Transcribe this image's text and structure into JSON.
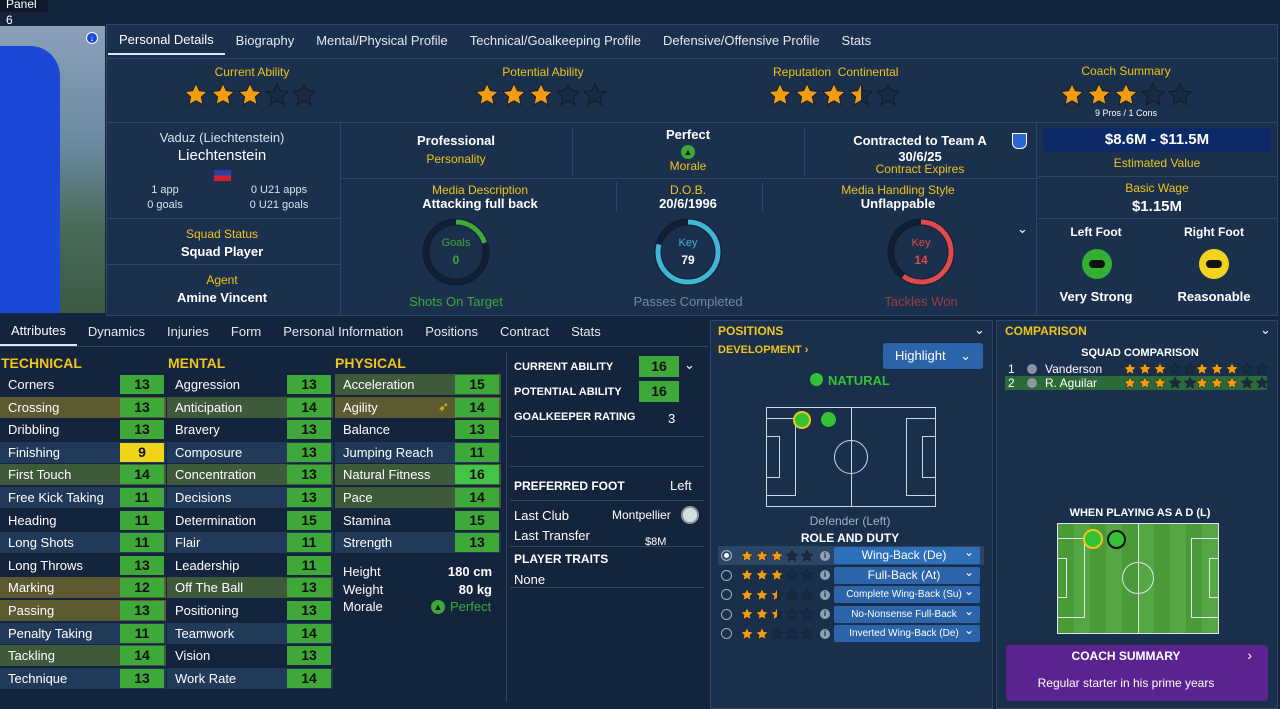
{
  "panel_title": "Panel 6",
  "top_tabs": [
    "Personal Details",
    "Biography",
    "Mental/Physical Profile",
    "Technical/Goalkeeping Profile",
    "Defensive/Offensive Profile",
    "Stats"
  ],
  "ratings": {
    "current_ability": {
      "label": "Current Ability",
      "stars": 3
    },
    "potential_ability": {
      "label": "Potential Ability",
      "stars": 3
    },
    "reputation": {
      "label": "Reputation",
      "region": "Continental",
      "stars": 3.5
    },
    "coach_summary": {
      "label": "Coach Summary",
      "stars": 3,
      "pros": "9 Pros / 1 Cons"
    }
  },
  "nationality": {
    "birthplace": "Vaduz (Liechtenstein)",
    "country": "Liechtenstein",
    "apps": "1 app",
    "goals": "0 goals",
    "u21_apps": "0 U21 apps",
    "u21_goals": "0 U21 goals"
  },
  "squad_status": {
    "label": "Squad Status",
    "value": "Squad Player"
  },
  "agent": {
    "label": "Agent",
    "value": "Amine Vincent"
  },
  "personality": {
    "value": "Professional",
    "label": "Personality"
  },
  "morale": {
    "value": "Perfect",
    "label": "Morale"
  },
  "contract": {
    "value": "Contracted to Team A",
    "date": "30/6/25",
    "label": "Contract Expires"
  },
  "media": {
    "label": "Media Description",
    "value": "Attacking full back"
  },
  "dob": {
    "label": "D.O.B.",
    "value": "20/6/1996"
  },
  "media_style": {
    "label": "Media Handling Style",
    "value": "Unflappable"
  },
  "value": {
    "amount": "$8.6M - $11.5M",
    "label": "Estimated Value"
  },
  "wage": {
    "label": "Basic Wage",
    "amount": "$1.15M"
  },
  "feet": {
    "left_label": "Left Foot",
    "left_value": "Very Strong",
    "right_label": "Right Foot",
    "right_value": "Reasonable"
  },
  "rings": [
    {
      "tag": "Goals",
      "value": "0",
      "label": "Shots On Target",
      "color": "#3ea838",
      "fraction": 0.2
    },
    {
      "tag": "Key",
      "value": "79",
      "label": "Passes Completed",
      "color": "#3fb6d4",
      "fraction": 0.79
    },
    {
      "tag": "Key",
      "value": "14",
      "label": "Tackles Won",
      "color": "#e04a4a",
      "fraction": 0.6
    }
  ],
  "bottom_tabs": [
    "Attributes",
    "Dynamics",
    "Injuries",
    "Form",
    "Personal Information",
    "Positions",
    "Contract",
    "Stats"
  ],
  "technical": {
    "title": "TECHNICAL",
    "rows": [
      [
        "Corners",
        13
      ],
      [
        "Crossing",
        13
      ],
      [
        "Dribbling",
        13
      ],
      [
        "Finishing",
        9
      ],
      [
        "First Touch",
        14
      ],
      [
        "Free Kick Taking",
        11
      ],
      [
        "Heading",
        11
      ],
      [
        "Long Shots",
        11
      ],
      [
        "Long Throws",
        13
      ],
      [
        "Marking",
        12
      ],
      [
        "Passing",
        13
      ],
      [
        "Penalty Taking",
        11
      ],
      [
        "Tackling",
        14
      ],
      [
        "Technique",
        13
      ]
    ]
  },
  "mental": {
    "title": "MENTAL",
    "rows": [
      [
        "Aggression",
        13
      ],
      [
        "Anticipation",
        14
      ],
      [
        "Bravery",
        13
      ],
      [
        "Composure",
        13
      ],
      [
        "Concentration",
        13
      ],
      [
        "Decisions",
        13
      ],
      [
        "Determination",
        15
      ],
      [
        "Flair",
        11
      ],
      [
        "Leadership",
        11
      ],
      [
        "Off The Ball",
        13
      ],
      [
        "Positioning",
        13
      ],
      [
        "Teamwork",
        14
      ],
      [
        "Vision",
        13
      ],
      [
        "Work Rate",
        14
      ]
    ]
  },
  "physical": {
    "title": "PHYSICAL",
    "rows": [
      [
        "Acceleration",
        15
      ],
      [
        "Agility",
        14
      ],
      [
        "Balance",
        13
      ],
      [
        "Jumping Reach",
        11
      ],
      [
        "Natural Fitness",
        16
      ],
      [
        "Pace",
        14
      ],
      [
        "Stamina",
        15
      ],
      [
        "Strength",
        13
      ]
    ]
  },
  "body": {
    "height_label": "Height",
    "height": "180 cm",
    "weight_label": "Weight",
    "weight": "80 kg",
    "morale_label": "Morale",
    "morale": "Perfect"
  },
  "abilities": {
    "ca_label": "CURRENT ABILITY",
    "ca": "16",
    "pa_label": "POTENTIAL ABILITY",
    "pa": "16",
    "gk_label": "GOALKEEPER RATING",
    "gk": "3"
  },
  "pref_foot": {
    "label": "PREFERRED FOOT",
    "value": "Left"
  },
  "last_club": {
    "label": "Last Club",
    "value": "Montpellier"
  },
  "last_transfer": {
    "label": "Last Transfer",
    "value": "$8M"
  },
  "traits": {
    "label": "PLAYER TRAITS",
    "value": "None"
  },
  "positions": {
    "title": "POSITIONS",
    "development": "DEVELOPMENT",
    "highlight": "Highlight",
    "natural": "NATURAL",
    "position_label": "Defender (Left)",
    "role_title": "ROLE AND DUTY",
    "roles": [
      {
        "stars": 3,
        "name": "Wing-Back (De)"
      },
      {
        "stars": 3,
        "name": "Full-Back (At)"
      },
      {
        "stars": 2.5,
        "name": "Complete Wing-Back (Su)"
      },
      {
        "stars": 2.5,
        "name": "No-Nonsense Full-Back (De)"
      },
      {
        "stars": 2,
        "name": "Inverted Wing-Back (De)"
      }
    ]
  },
  "comparison": {
    "title": "COMPARISON",
    "squad_title": "SQUAD COMPARISON",
    "rows": [
      {
        "rank": "1",
        "name": "Vanderson",
        "s1": 3,
        "s2": 3
      },
      {
        "rank": "2",
        "name": "R. Aguilar",
        "s1": 3,
        "s2": 3
      }
    ],
    "playing_as": "WHEN PLAYING AS A D (L)",
    "coach_title": "COACH SUMMARY",
    "coach_text": "Regular starter in his prime years"
  },
  "colors": {
    "bg": "#13243c",
    "panel": "#1a2f4b",
    "accent_yellow": "#f0c419",
    "attr_green": "#3ea838",
    "coach_purple": "#5b2390"
  }
}
